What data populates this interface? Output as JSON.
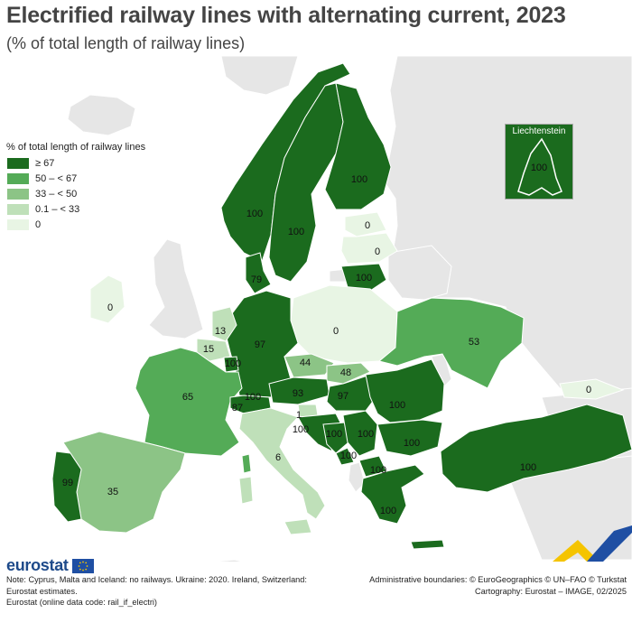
{
  "title": "Electrified railway lines with alternating current, 2023",
  "subtitle": "(% of total length of railway lines)",
  "legend": {
    "title": "% of total length of railway lines",
    "classes": [
      {
        "label": "≥ 67",
        "color": "#1b6b1e"
      },
      {
        "label": "50 – < 67",
        "color": "#54ab57"
      },
      {
        "label": "33 – < 50",
        "color": "#8cc486"
      },
      {
        "label": "0.1 – < 33",
        "color": "#bfe0b9"
      },
      {
        "label": "0",
        "color": "#e8f5e4"
      }
    ]
  },
  "colors": {
    "non_covered": "#e6e6e6",
    "sea": "#ffffff",
    "border": "#ffffff"
  },
  "inset": {
    "title": "Liechtenstein",
    "value": "100"
  },
  "regions": [
    {
      "id": "portugal",
      "value": "99"
    },
    {
      "id": "spain",
      "value": "35"
    },
    {
      "id": "france",
      "value": "65"
    },
    {
      "id": "ireland",
      "value": "0"
    },
    {
      "id": "belgium",
      "value": "15"
    },
    {
      "id": "netherlands",
      "value": "13"
    },
    {
      "id": "luxembourg",
      "value": "100"
    },
    {
      "id": "germany",
      "value": "97"
    },
    {
      "id": "denmark",
      "value": "79"
    },
    {
      "id": "norway",
      "value": "100"
    },
    {
      "id": "sweden",
      "value": "100"
    },
    {
      "id": "finland",
      "value": "100"
    },
    {
      "id": "estonia",
      "value": "0"
    },
    {
      "id": "latvia",
      "value": "0"
    },
    {
      "id": "lithuania",
      "value": "100"
    },
    {
      "id": "poland",
      "value": "0"
    },
    {
      "id": "czechia",
      "value": "44"
    },
    {
      "id": "slovakia",
      "value": "48"
    },
    {
      "id": "austria",
      "value": "93"
    },
    {
      "id": "switzerland",
      "value": "100"
    },
    {
      "id": "italy",
      "value": "6"
    },
    {
      "id": "slovenia",
      "value": "1"
    },
    {
      "id": "croatia",
      "value": "100"
    },
    {
      "id": "hungary",
      "value": "97"
    },
    {
      "id": "romania",
      "value": "100"
    },
    {
      "id": "serbia",
      "value": "100"
    },
    {
      "id": "bosnia",
      "value": "100"
    },
    {
      "id": "montenegro",
      "value": "100"
    },
    {
      "id": "north_macedonia",
      "value": "100"
    },
    {
      "id": "bulgaria",
      "value": "100"
    },
    {
      "id": "greece",
      "value": "100"
    },
    {
      "id": "turkey",
      "value": "100"
    },
    {
      "id": "ukraine",
      "value": "53"
    },
    {
      "id": "georgia",
      "value": "0"
    },
    {
      "id": "sw_label",
      "value": "87"
    }
  ],
  "note": "Note: Cyprus, Malta and Iceland: no railways. Ukraine: 2020. Ireland, Switzerland: Eurostat estimates.",
  "source": "Eurostat (online data code: rail_if_electri)",
  "credits": {
    "line1": "Administrative boundaries: © EuroGeographics © UN–FAO © Turkstat",
    "line2": "Cartography: Eurostat – IMAGE, 02/2025"
  },
  "logo": "eurostat"
}
